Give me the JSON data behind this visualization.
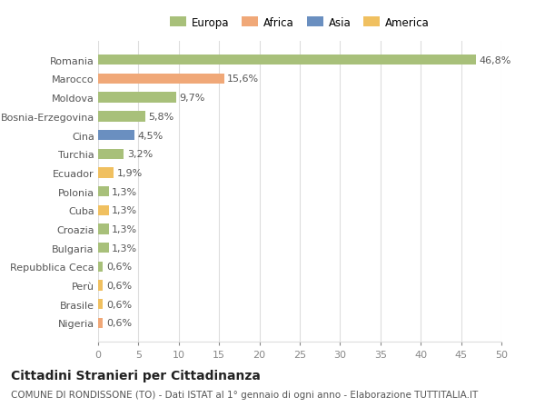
{
  "categories": [
    "Romania",
    "Marocco",
    "Moldova",
    "Bosnia-Erzegovina",
    "Cina",
    "Turchia",
    "Ecuador",
    "Polonia",
    "Cuba",
    "Croazia",
    "Bulgaria",
    "Repubblica Ceca",
    "Perù",
    "Brasile",
    "Nigeria"
  ],
  "values": [
    46.8,
    15.6,
    9.7,
    5.8,
    4.5,
    3.2,
    1.9,
    1.3,
    1.3,
    1.3,
    1.3,
    0.6,
    0.6,
    0.6,
    0.6
  ],
  "labels": [
    "46,8%",
    "15,6%",
    "9,7%",
    "5,8%",
    "4,5%",
    "3,2%",
    "1,9%",
    "1,3%",
    "1,3%",
    "1,3%",
    "1,3%",
    "0,6%",
    "0,6%",
    "0,6%",
    "0,6%"
  ],
  "colors": [
    "#a8c07a",
    "#f0a878",
    "#a8c07a",
    "#a8c07a",
    "#6a8fc0",
    "#a8c07a",
    "#f0c060",
    "#a8c07a",
    "#f0c060",
    "#a8c07a",
    "#a8c07a",
    "#a8c07a",
    "#f0c060",
    "#f0c060",
    "#f0a878"
  ],
  "legend_labels": [
    "Europa",
    "Africa",
    "Asia",
    "America"
  ],
  "legend_colors": [
    "#a8c07a",
    "#f0a878",
    "#6a8fc0",
    "#f0c060"
  ],
  "title": "Cittadini Stranieri per Cittadinanza",
  "subtitle": "COMUNE DI RONDISSONE (TO) - Dati ISTAT al 1° gennaio di ogni anno - Elaborazione TUTTITALIA.IT",
  "xlim": [
    0,
    50
  ],
  "xticks": [
    0,
    5,
    10,
    15,
    20,
    25,
    30,
    35,
    40,
    45,
    50
  ],
  "bg_color": "#ffffff",
  "grid_color": "#dddddd",
  "bar_height": 0.55,
  "label_fontsize": 8,
  "ytick_fontsize": 8,
  "xtick_fontsize": 8,
  "title_fontsize": 10,
  "subtitle_fontsize": 7.5
}
